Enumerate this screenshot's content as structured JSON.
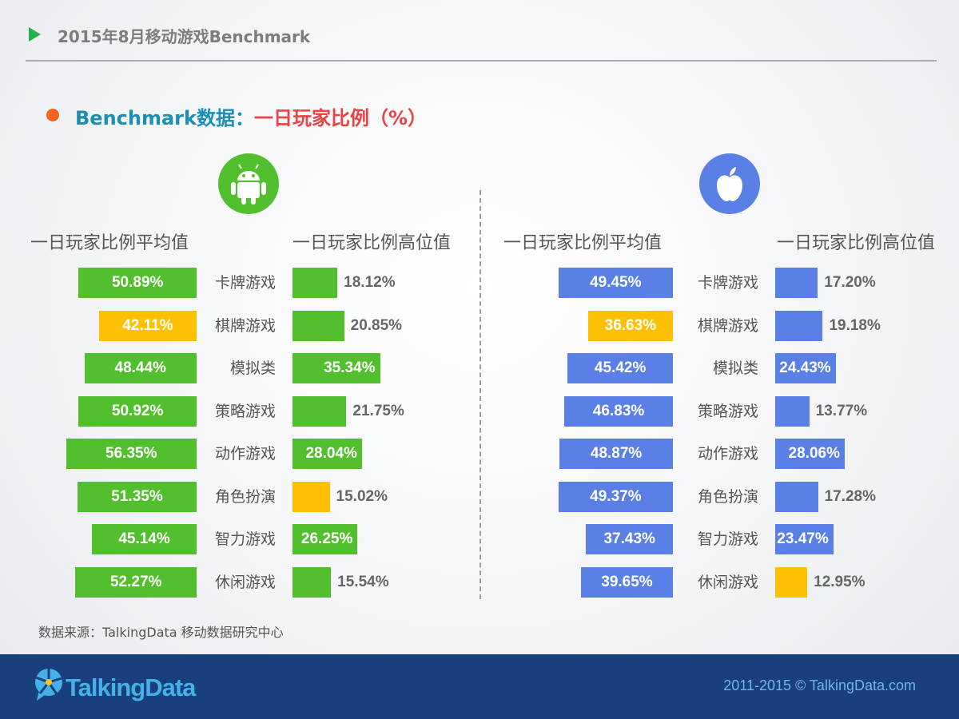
{
  "header": {
    "title": "2015年8月移动游戏Benchmark"
  },
  "subtitle": {
    "part1": "Benchmark数据：",
    "part2": "一日玩家比例（%）"
  },
  "colors": {
    "android_bar": "#52c02e",
    "ios_bar": "#5a80e6",
    "highlight_bar": "#fec003"
  },
  "icons": {
    "android": "android-icon",
    "ios": "apple-icon"
  },
  "chart_data": [
    {
      "type": "bar",
      "platform": "Android",
      "series_label": "一日玩家比例平均值",
      "categories": [
        "卡牌游戏",
        "棋牌游戏",
        "模拟类",
        "策略游戏",
        "动作游戏",
        "角色扮演",
        "智力游戏",
        "休闲游戏"
      ],
      "values": [
        50.89,
        42.11,
        48.44,
        50.92,
        56.35,
        51.35,
        45.14,
        52.27
      ],
      "labels": [
        "50.89%",
        "42.11%",
        "48.44%",
        "50.92%",
        "56.35%",
        "51.35%",
        "45.14%",
        "52.27%"
      ],
      "highlight_index": 1
    },
    {
      "type": "bar",
      "platform": "Android",
      "series_label": "一日玩家比例高位值",
      "categories": [
        "卡牌游戏",
        "棋牌游戏",
        "模拟类",
        "策略游戏",
        "动作游戏",
        "角色扮演",
        "智力游戏",
        "休闲游戏"
      ],
      "values": [
        18.12,
        20.85,
        35.34,
        21.75,
        28.04,
        15.02,
        26.25,
        15.54
      ],
      "labels": [
        "18.12%",
        "20.85%",
        "35.34%",
        "21.75%",
        "28.04%",
        "15.02%",
        "26.25%",
        "15.54%"
      ],
      "highlight_index": 5
    },
    {
      "type": "bar",
      "platform": "iOS",
      "series_label": "一日玩家比例平均值",
      "categories": [
        "卡牌游戏",
        "棋牌游戏",
        "模拟类",
        "策略游戏",
        "动作游戏",
        "角色扮演",
        "智力游戏",
        "休闲游戏"
      ],
      "values": [
        49.45,
        36.63,
        45.42,
        46.83,
        48.87,
        49.37,
        37.43,
        39.65
      ],
      "labels": [
        "49.45%",
        "36.63%",
        "45.42%",
        "46.83%",
        "48.87%",
        "49.37%",
        "37.43%",
        "39.65%"
      ],
      "highlight_index": 1
    },
    {
      "type": "bar",
      "platform": "iOS",
      "series_label": "一日玩家比例高位值",
      "categories": [
        "卡牌游戏",
        "棋牌游戏",
        "模拟类",
        "策略游戏",
        "动作游戏",
        "角色扮演",
        "智力游戏",
        "休闲游戏"
      ],
      "values": [
        17.2,
        19.18,
        24.43,
        13.77,
        28.06,
        17.28,
        23.47,
        12.95
      ],
      "labels": [
        "17.20%",
        "19.18%",
        "24.43%",
        "13.77%",
        "28.06%",
        "17.28%",
        "23.47%",
        "12.95%"
      ],
      "highlight_index": 7
    }
  ],
  "source": "数据来源：TalkingData 移动数据研究中心",
  "footer": {
    "logo_text": "TalkingData",
    "copyright": "2011-2015 © TalkingData.com"
  }
}
